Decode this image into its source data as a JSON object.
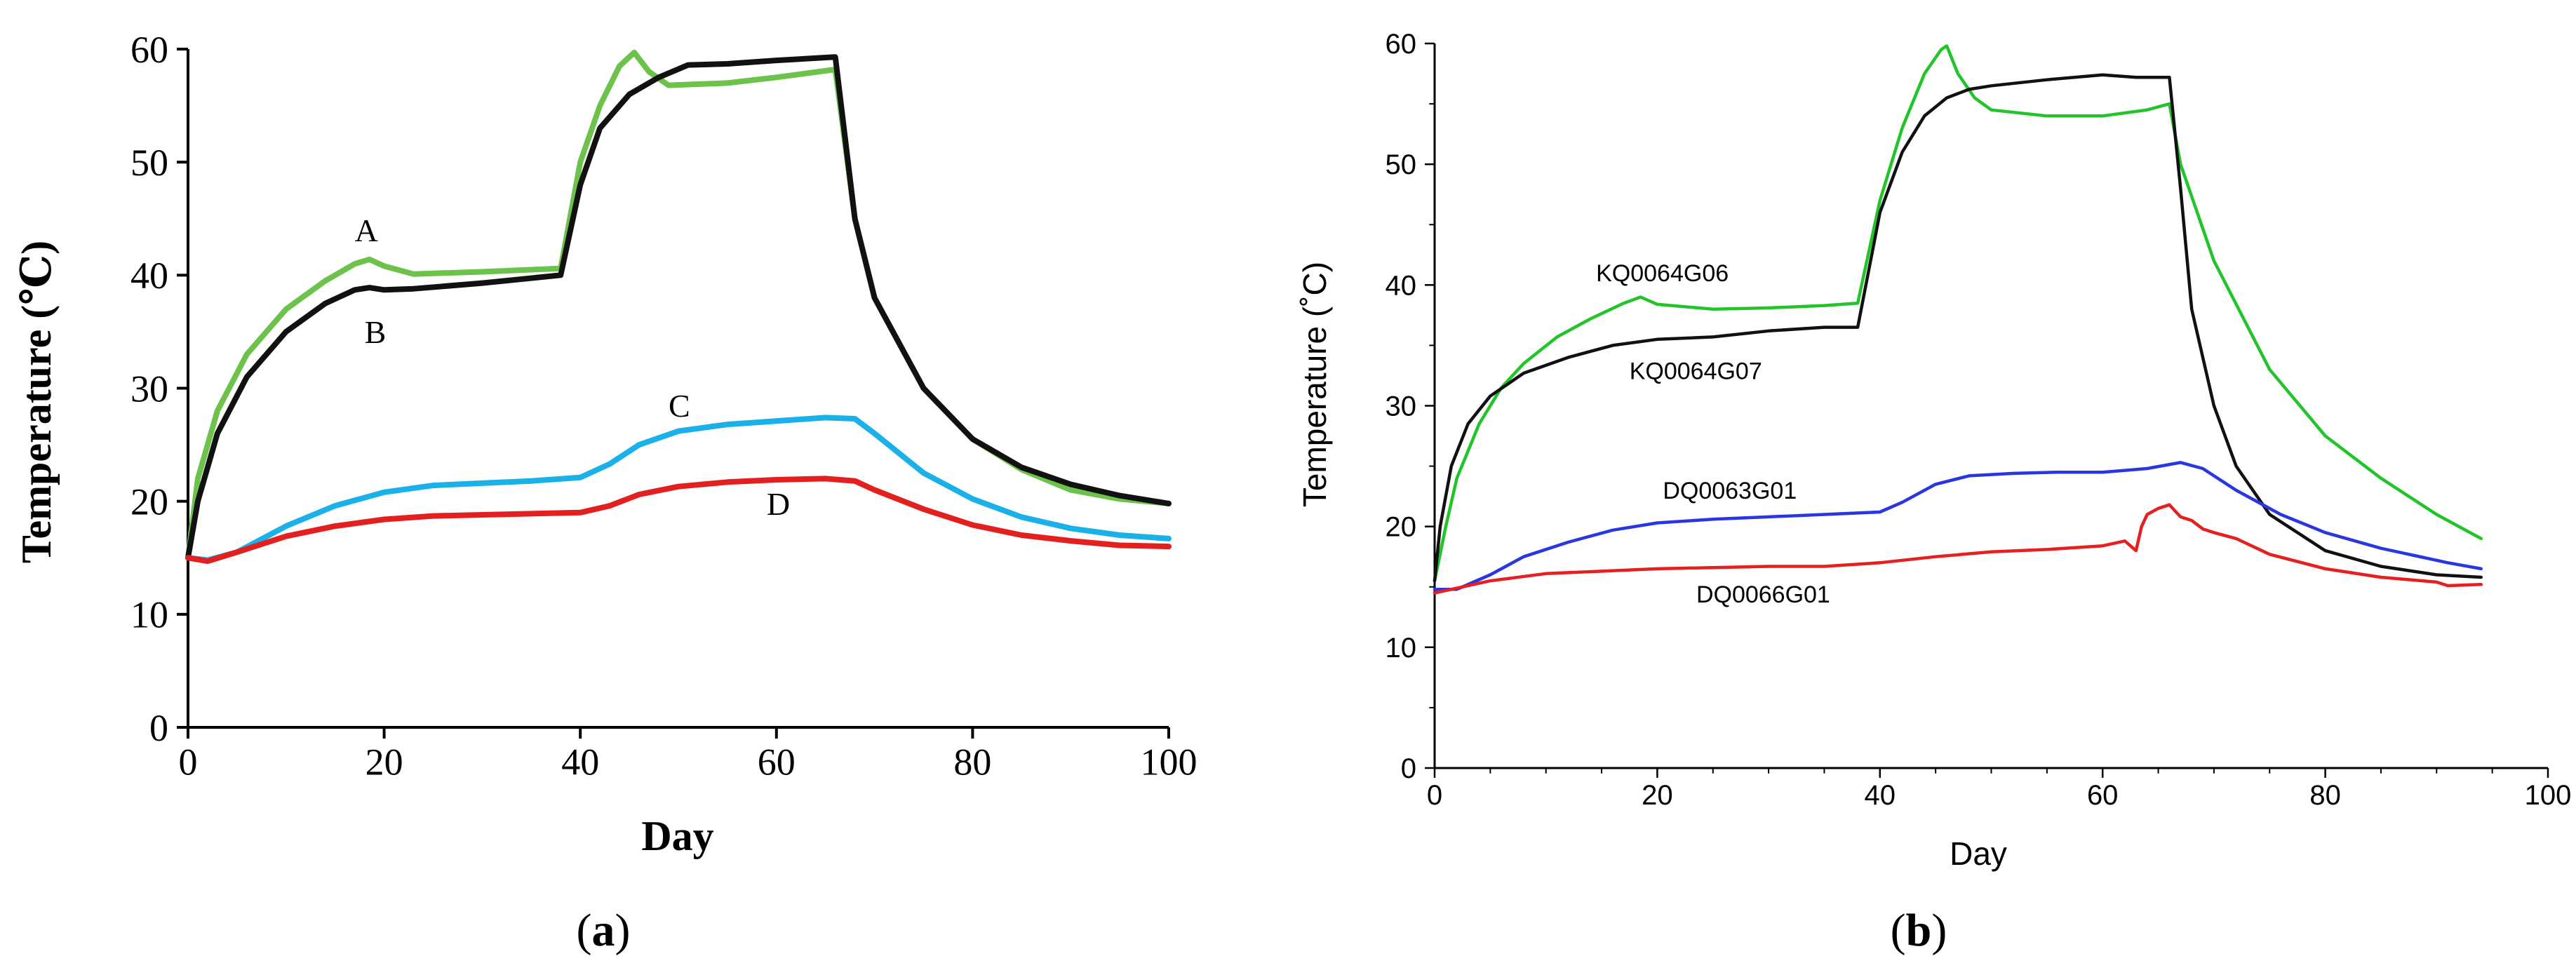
{
  "chart_data": [
    {
      "type": "line",
      "panel_label": "a",
      "xlabel": "Day",
      "ylabel": "Temperature (℃)",
      "xlim": [
        0,
        100
      ],
      "ylim": [
        0,
        60
      ],
      "xticks": [
        0,
        20,
        40,
        60,
        80,
        100
      ],
      "yticks": [
        0,
        10,
        20,
        30,
        40,
        50,
        60
      ],
      "grid": false,
      "series": [
        {
          "name": "A",
          "color": "#6cc24a",
          "x": [
            0,
            1,
            3,
            6,
            10,
            14,
            17,
            18.5,
            20,
            23,
            30,
            38,
            40,
            42,
            44,
            45.5,
            47,
            49,
            55,
            60,
            66,
            68,
            70,
            75,
            80,
            85,
            90,
            95,
            100
          ],
          "y": [
            15,
            22,
            28,
            33,
            37,
            39.5,
            41,
            41.4,
            40.8,
            40.1,
            40.3,
            40.6,
            50,
            55,
            58.5,
            59.7,
            58,
            56.8,
            57,
            57.5,
            58.2,
            45,
            38,
            30,
            25.5,
            22.8,
            21,
            20.2,
            19.8
          ]
        },
        {
          "name": "B",
          "color": "#111111",
          "x": [
            0,
            1,
            3,
            6,
            10,
            14,
            17,
            18.5,
            20,
            23,
            30,
            38,
            40,
            42,
            45,
            48,
            51,
            55,
            60,
            66,
            68,
            70,
            75,
            80,
            85,
            90,
            95,
            100
          ],
          "y": [
            15,
            20,
            26,
            31,
            35,
            37.5,
            38.7,
            38.9,
            38.7,
            38.8,
            39.3,
            40,
            48,
            53,
            56,
            57.5,
            58.6,
            58.7,
            59,
            59.3,
            45,
            38,
            30,
            25.5,
            23,
            21.5,
            20.5,
            19.8
          ]
        },
        {
          "name": "C",
          "color": "#1ab0e8",
          "x": [
            0,
            2,
            5,
            10,
            15,
            20,
            25,
            30,
            35,
            40,
            43,
            46,
            50,
            55,
            60,
            65,
            68,
            70,
            75,
            80,
            85,
            90,
            95,
            100
          ],
          "y": [
            15,
            14.8,
            15.5,
            17.8,
            19.6,
            20.8,
            21.4,
            21.6,
            21.8,
            22.1,
            23.3,
            25,
            26.2,
            26.8,
            27.1,
            27.4,
            27.3,
            26,
            22.5,
            20.2,
            18.6,
            17.6,
            17,
            16.7
          ]
        },
        {
          "name": "D",
          "color": "#e41f1f",
          "x": [
            0,
            2,
            5,
            10,
            15,
            20,
            25,
            30,
            35,
            40,
            43,
            46,
            50,
            55,
            60,
            65,
            68,
            70,
            75,
            80,
            85,
            90,
            95,
            100
          ],
          "y": [
            15,
            14.7,
            15.5,
            16.9,
            17.8,
            18.4,
            18.7,
            18.8,
            18.9,
            19,
            19.6,
            20.6,
            21.3,
            21.7,
            21.9,
            22,
            21.8,
            21,
            19.3,
            17.9,
            17,
            16.5,
            16.1,
            16
          ]
        }
      ],
      "annotations": [
        {
          "text": "A",
          "x": 17,
          "y": 43
        },
        {
          "text": "B",
          "x": 18,
          "y": 34
        },
        {
          "text": "C",
          "x": 49,
          "y": 27.5
        },
        {
          "text": "D",
          "x": 59,
          "y": 18.8
        }
      ]
    },
    {
      "type": "line",
      "panel_label": "b",
      "xlabel": "Day",
      "ylabel": "Temperature (˚C)",
      "xlim": [
        0,
        100
      ],
      "ylim": [
        0,
        60
      ],
      "xticks": [
        0,
        20,
        40,
        60,
        80,
        100
      ],
      "yticks": [
        0,
        10,
        20,
        30,
        40,
        50,
        60
      ],
      "grid": false,
      "series": [
        {
          "name": "KQ0064G06",
          "color": "#22c42a",
          "x": [
            0,
            1,
            2,
            4,
            6,
            8,
            11,
            14,
            17,
            18.5,
            20,
            25,
            30,
            35,
            38,
            40,
            42,
            44,
            45.5,
            46,
            47,
            48.5,
            50,
            55,
            60,
            64,
            66,
            67,
            70,
            75,
            80,
            85,
            90,
            94
          ],
          "y": [
            15.5,
            20,
            24,
            28.5,
            31.5,
            33.5,
            35.7,
            37.2,
            38.5,
            39,
            38.4,
            38,
            38.1,
            38.3,
            38.5,
            47,
            53,
            57.5,
            59.5,
            59.8,
            57.5,
            55.5,
            54.5,
            54,
            54,
            54.5,
            55,
            50,
            42,
            33,
            27.5,
            24,
            21,
            19
          ]
        },
        {
          "name": "KQ0064G07",
          "color": "#111111",
          "x": [
            0,
            0.5,
            1.5,
            3,
            5,
            8,
            12,
            16,
            20,
            25,
            30,
            35,
            38,
            40,
            42,
            44,
            46,
            48,
            50,
            55,
            60,
            63,
            66,
            67,
            68,
            70,
            72,
            75,
            80,
            85,
            90,
            94
          ],
          "y": [
            15.5,
            20,
            25,
            28.5,
            30.8,
            32.7,
            34,
            35,
            35.5,
            35.7,
            36.2,
            36.5,
            36.5,
            46,
            51,
            54,
            55.5,
            56.2,
            56.5,
            57,
            57.4,
            57.2,
            57.2,
            48,
            38,
            30,
            25,
            21,
            18,
            16.7,
            16,
            15.8
          ]
        },
        {
          "name": "DQ0063G01",
          "color": "#2a36e0",
          "x": [
            0,
            2,
            5,
            8,
            12,
            16,
            20,
            25,
            30,
            35,
            40,
            42,
            45,
            48,
            52,
            56,
            60,
            64,
            67,
            69,
            72,
            76,
            80,
            85,
            88,
            91,
            94
          ],
          "y": [
            14.8,
            14.8,
            16,
            17.5,
            18.7,
            19.7,
            20.3,
            20.6,
            20.8,
            21,
            21.2,
            22,
            23.5,
            24.2,
            24.4,
            24.5,
            24.5,
            24.8,
            25.3,
            24.8,
            23,
            21,
            19.5,
            18.2,
            17.6,
            17,
            16.5
          ]
        },
        {
          "name": "DQ0066G01",
          "color": "#e42020",
          "x": [
            0,
            5,
            10,
            15,
            20,
            25,
            30,
            35,
            40,
            45,
            50,
            55,
            60,
            62,
            63,
            63.5,
            64,
            65,
            66,
            67,
            68,
            69,
            70,
            72,
            75,
            80,
            85,
            90,
            91,
            94
          ],
          "y": [
            14.5,
            15.5,
            16.1,
            16.3,
            16.5,
            16.6,
            16.7,
            16.7,
            17,
            17.5,
            17.9,
            18.1,
            18.4,
            18.8,
            18,
            20,
            21,
            21.5,
            21.8,
            20.8,
            20.5,
            19.8,
            19.5,
            19,
            17.7,
            16.5,
            15.8,
            15.4,
            15.1,
            15.2
          ]
        }
      ],
      "annotations": [
        {
          "text": "KQ0064G06",
          "x": 14.5,
          "y": 40.3
        },
        {
          "text": "KQ0064G07",
          "x": 17.5,
          "y": 32.2
        },
        {
          "text": "DQ0063G01",
          "x": 20.5,
          "y": 22.3
        },
        {
          "text": "DQ0066G01",
          "x": 23.5,
          "y": 13.7
        }
      ]
    }
  ]
}
